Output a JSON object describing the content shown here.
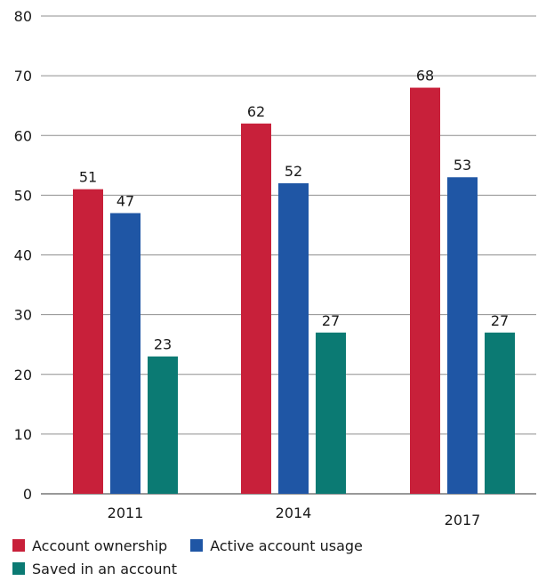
{
  "chart_data": {
    "type": "bar",
    "categories": [
      "2011",
      "2014",
      "2017"
    ],
    "series": [
      {
        "name": "Account ownership",
        "values": [
          51,
          62,
          68
        ],
        "color": "#c8203a"
      },
      {
        "name": "Active account usage",
        "values": [
          47,
          52,
          53
        ],
        "color": "#1f56a5"
      },
      {
        "name": "Saved in an account",
        "values": [
          23,
          27,
          27
        ],
        "color": "#0b7a73"
      }
    ],
    "title": "",
    "xlabel": "",
    "ylabel": "",
    "ylim": [
      0,
      80
    ],
    "yticks": [
      0,
      10,
      20,
      30,
      40,
      50,
      60,
      70,
      80
    ],
    "grid": true,
    "legend_position": "bottom"
  }
}
